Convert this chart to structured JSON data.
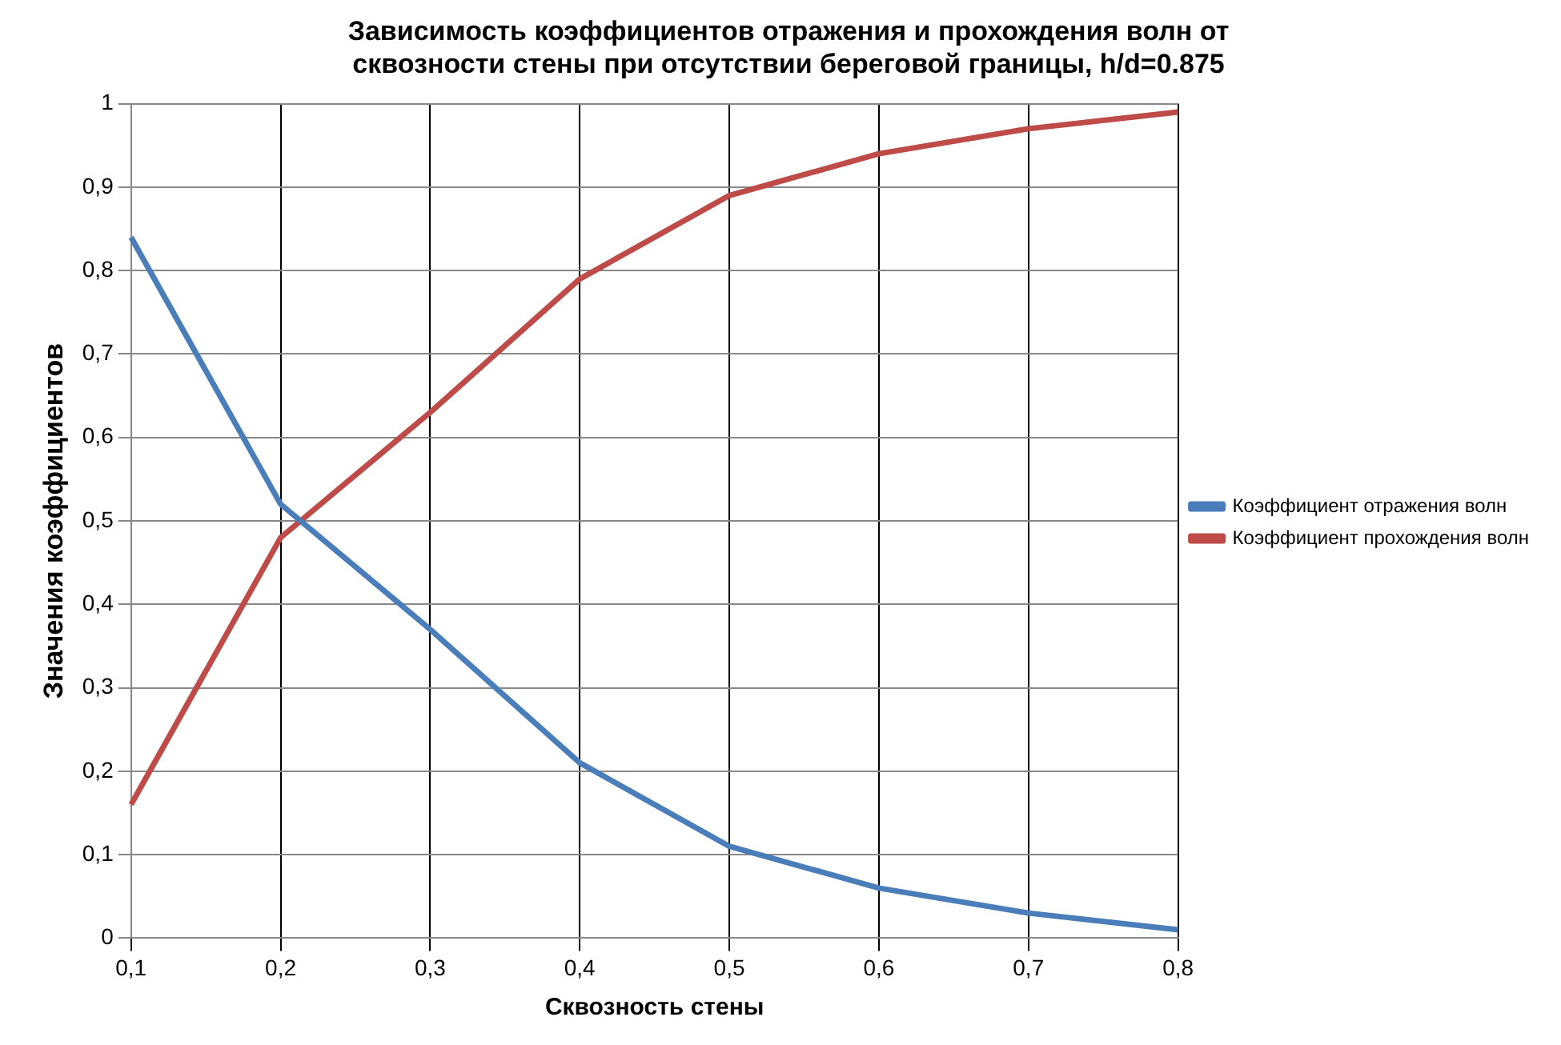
{
  "chart_data": {
    "type": "line",
    "title": "Зависимость коэффициентов отражения и прохождения волн от\nсквозности стены при отсутствии береговой границы, h/d=0.875",
    "xlabel": "Сквозность стены",
    "ylabel": "Значения коэффициентов",
    "categories": [
      "0,1",
      "0,2",
      "0,3",
      "0,4",
      "0,5",
      "0,6",
      "0,7",
      "0,8"
    ],
    "series": [
      {
        "name": "Коэффициент отражения волн",
        "color": "#4a7ebb",
        "values": [
          0.84,
          0.52,
          0.37,
          0.21,
          0.11,
          0.06,
          0.03,
          0.01
        ]
      },
      {
        "name": "Коэффициент прохождения волн",
        "color": "#be4b48",
        "values": [
          0.16,
          0.48,
          0.63,
          0.79,
          0.89,
          0.94,
          0.97,
          0.99
        ]
      }
    ],
    "ylim": [
      0,
      1
    ],
    "yticks": [
      {
        "value": 0,
        "label": "0"
      },
      {
        "value": 0.1,
        "label": "0,1"
      },
      {
        "value": 0.2,
        "label": "0,2"
      },
      {
        "value": 0.3,
        "label": "0,3"
      },
      {
        "value": 0.4,
        "label": "0,4"
      },
      {
        "value": 0.5,
        "label": "0,5"
      },
      {
        "value": 0.6,
        "label": "0,6"
      },
      {
        "value": 0.7,
        "label": "0,7"
      },
      {
        "value": 0.8,
        "label": "0,8"
      },
      {
        "value": 0.9,
        "label": "0,9"
      },
      {
        "value": 1,
        "label": "1"
      }
    ],
    "grid": true,
    "legend": "right",
    "marker": "none",
    "line_style": "solid"
  }
}
